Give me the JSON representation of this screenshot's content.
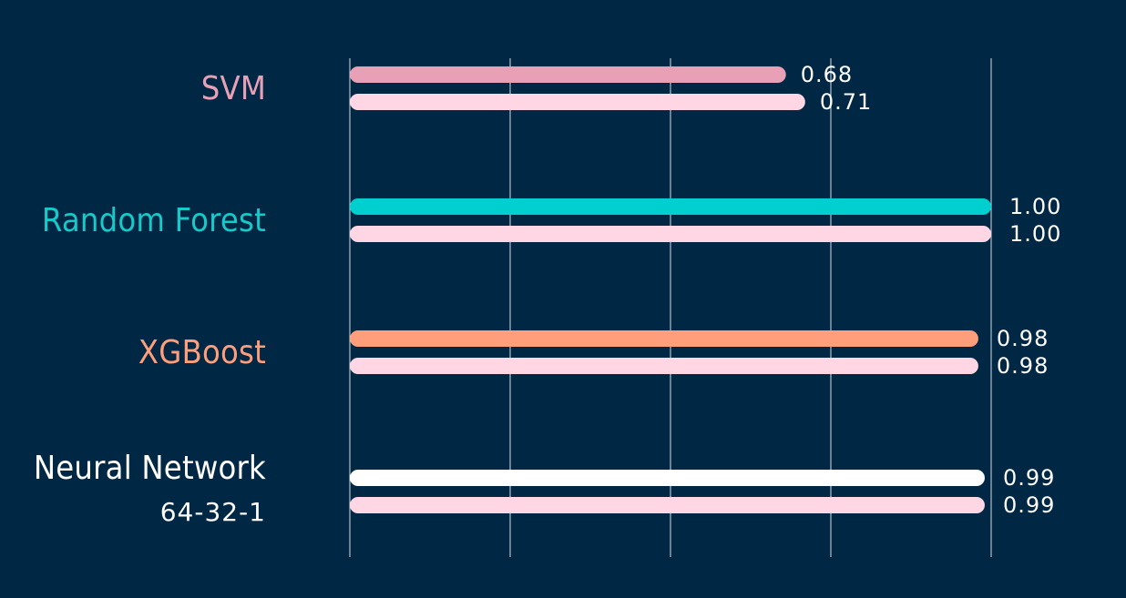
{
  "chart_data": {
    "type": "bar",
    "orientation": "horizontal",
    "background": "#002744",
    "gridline_color": "#FFFFFF",
    "grid": true,
    "xlim": [
      0,
      1
    ],
    "categories": [
      {
        "name": "SVM",
        "sublabel": "",
        "label_color": "#E8A0B6",
        "primary_color": "#E8A0B6",
        "secondary_color": "#FFD6E4",
        "values": [
          0.68,
          0.71
        ],
        "value_labels": [
          "0.68",
          "0.71"
        ]
      },
      {
        "name": "Random Forest",
        "sublabel": "",
        "label_color": "#19C8C8",
        "primary_color": "#00CFCF",
        "secondary_color": "#FFD6E4",
        "values": [
          1.0,
          1.0
        ],
        "value_labels": [
          "1.00",
          "1.00"
        ]
      },
      {
        "name": "XGBoost",
        "sublabel": "",
        "label_color": "#FF9E7A",
        "primary_color": "#FF9E7A",
        "secondary_color": "#FFD6E4",
        "values": [
          0.98,
          0.98
        ],
        "value_labels": [
          "0.98",
          "0.98"
        ]
      },
      {
        "name": "Neural Network",
        "sublabel": "64-32-1",
        "label_color": "#FFFFFF",
        "primary_color": "#FFFFFF",
        "secondary_color": "#FFD6E4",
        "values": [
          0.99,
          0.99
        ],
        "value_labels": [
          "0.99",
          "0.99"
        ]
      }
    ]
  }
}
